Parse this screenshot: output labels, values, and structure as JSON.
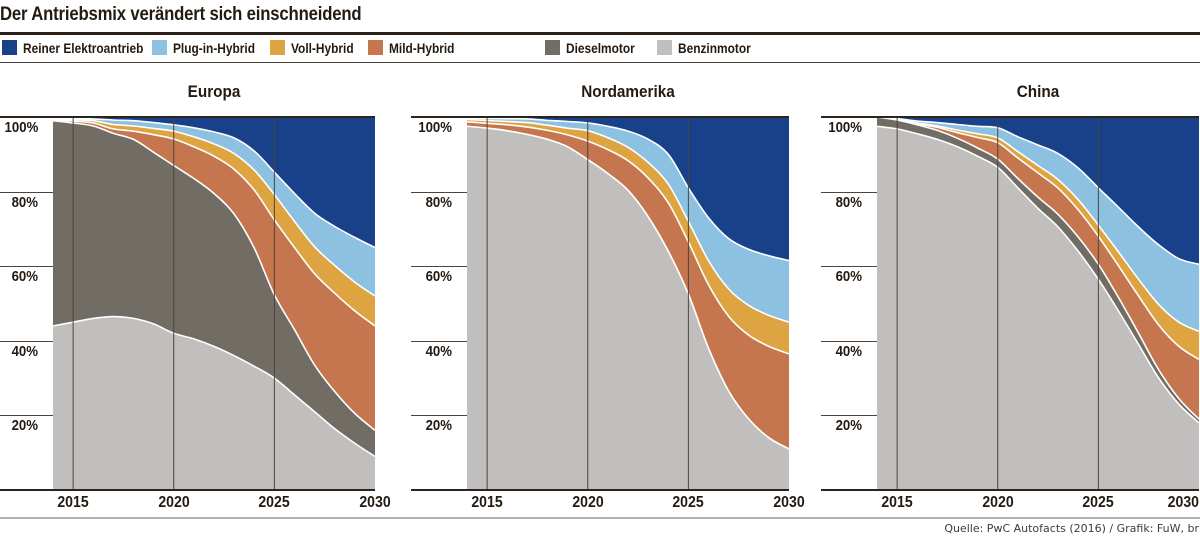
{
  "header": {
    "title": "Der Antriebsmix verändert sich einschneidend"
  },
  "legend": {
    "items": [
      {
        "key": "elektro",
        "label": "Reiner Elektroantrieb",
        "color": "#18418a"
      },
      {
        "key": "plug_in_hybrid",
        "label": "Plug-in-Hybrid",
        "color": "#8cc1e2"
      },
      {
        "key": "voll_hybrid",
        "label": "Voll-Hybrid",
        "color": "#dda441"
      },
      {
        "key": "mild_hybrid",
        "label": "Mild-Hybrid",
        "color": "#c5764e"
      },
      {
        "key": "dieselmotor",
        "label": "Dieselmotor",
        "color": "#716c64"
      },
      {
        "key": "benzinmotor",
        "label": "Benzinmotor",
        "color": "#c1bfbd"
      }
    ]
  },
  "footer": {
    "source": "Quelle: PwC Autofacts (2016) / Grafik: FuW, br"
  },
  "chart_data": {
    "type": "area",
    "stacked": true,
    "normalized_to_100": true,
    "unit": "%",
    "x_start": 2014,
    "x_end": 2030,
    "x": [
      2014,
      2015,
      2016,
      2017,
      2018,
      2019,
      2020,
      2021,
      2022,
      2023,
      2024,
      2025,
      2026,
      2027,
      2028,
      2029,
      2030
    ],
    "x_ticks": [
      {
        "label": "2015",
        "value": 2015
      },
      {
        "label": "2020",
        "value": 2020
      },
      {
        "label": "2025",
        "value": 2025
      },
      {
        "label": "2030",
        "value": 2030
      }
    ],
    "y_ticks": [
      {
        "label": "100%",
        "value": 100
      },
      {
        "label": "80%",
        "value": 80
      },
      {
        "label": "60%",
        "value": 60
      },
      {
        "label": "40%",
        "value": 40
      },
      {
        "label": "20%",
        "value": 20
      }
    ],
    "ylim": [
      0,
      100
    ],
    "grid_years": [
      2015,
      2020,
      2025
    ],
    "order_bottom_to_top": [
      "benzinmotor",
      "dieselmotor",
      "mild_hybrid",
      "voll_hybrid",
      "plug_in_hybrid",
      "elektro"
    ],
    "colors": {
      "benzinmotor": "#c1bfbd",
      "dieselmotor": "#716c64",
      "mild_hybrid": "#c5764e",
      "voll_hybrid": "#dda441",
      "plug_in_hybrid": "#8cc1e2",
      "elektro": "#18418a"
    },
    "charts": [
      {
        "title": "Europa",
        "series": {
          "benzinmotor": [
            44,
            45,
            46,
            46.5,
            46,
            44.5,
            42,
            40.5,
            38.5,
            36,
            33,
            30,
            25.5,
            21,
            16.5,
            12.5,
            9
          ],
          "dieselmotor": [
            55,
            53.4,
            51.6,
            49.1,
            48,
            46,
            45,
            43,
            41,
            38,
            31.5,
            22.3,
            17.5,
            12.5,
            10,
            8,
            7
          ],
          "mild_hybrid": [
            0.3,
            0.5,
            0.8,
            1.2,
            2.2,
            4.7,
            7.1,
            8.5,
            10,
            12,
            15.5,
            20.1,
            22,
            24.5,
            26.5,
            27.5,
            28
          ],
          "voll_hybrid": [
            0.25,
            0.4,
            0.6,
            1.2,
            1.4,
            1.7,
            2.1,
            2.7,
            3.3,
            4.2,
            5.3,
            6.8,
            7,
            7.2,
            7.5,
            7.7,
            8
          ],
          "plug_in_hybrid": [
            0.2,
            0.35,
            0.5,
            1.2,
            1.4,
            1.55,
            1.7,
            2.4,
            3.2,
            4.2,
            5.1,
            6,
            7.5,
            9,
            10.5,
            12,
            13
          ],
          "elektro": [
            0.25,
            0.35,
            0.5,
            0.8,
            1,
            1.5,
            2.1,
            2.9,
            4,
            5.6,
            9.1,
            14.8,
            20.5,
            25.8,
            29.5,
            32.3,
            35
          ]
        }
      },
      {
        "title": "Nordamerika",
        "series": {
          "benzinmotor": [
            97.5,
            97,
            96.3,
            95.3,
            94,
            92,
            89,
            85.5,
            81,
            74,
            64,
            52.5,
            38,
            26.5,
            19,
            14,
            11
          ],
          "dieselmotor": [
            0,
            0,
            0,
            0,
            0,
            0,
            0,
            0,
            0,
            0,
            0,
            0,
            0,
            0,
            0,
            0,
            0
          ],
          "mild_hybrid": [
            1.2,
            1.3,
            1.6,
            2,
            2.4,
            3.2,
            5,
            6.5,
            8,
            10.5,
            13,
            14,
            17,
            20,
            22.5,
            24.5,
            25.5
          ],
          "voll_hybrid": [
            0.65,
            0.75,
            0.9,
            1.2,
            1.4,
            1.8,
            2.8,
            3.2,
            3.6,
            4.2,
            5,
            5.5,
            6.5,
            7.3,
            8,
            8.3,
            8.5
          ],
          "plug_in_hybrid": [
            0.35,
            0.55,
            0.75,
            1,
            1.3,
            1.8,
            2.1,
            3.1,
            4.4,
            6.3,
            8,
            9,
            11.5,
            13.5,
            15,
            16,
            16.5
          ],
          "elektro": [
            0.3,
            0.4,
            0.45,
            0.5,
            0.9,
            1.2,
            1.6,
            2.5,
            3.8,
            6,
            10,
            19,
            27,
            32.5,
            35.5,
            37.2,
            38.5
          ]
        }
      },
      {
        "title": "China",
        "series": {
          "benzinmotor": [
            97.5,
            96.8,
            95.5,
            94,
            92,
            89.5,
            86.5,
            81,
            75.5,
            70.5,
            64,
            56.5,
            48,
            39,
            30,
            23,
            18
          ],
          "dieselmotor": [
            2.5,
            2.4,
            2.4,
            2.4,
            2.3,
            2.2,
            2.2,
            2.5,
            3,
            3.4,
            3.8,
            4,
            3.6,
            3,
            2.2,
            1.5,
            1
          ],
          "mild_hybrid": [
            0,
            0.1,
            0.3,
            0.8,
            1.5,
            2.8,
            4.4,
            5.5,
            6.5,
            7,
            7.3,
            7.5,
            8.5,
            10,
            12,
            14,
            16
          ],
          "voll_hybrid": [
            0,
            0.1,
            0.2,
            0.4,
            0.7,
            1,
            1.3,
            1.7,
            2,
            2.3,
            2.7,
            3,
            3.7,
            4.5,
            5.5,
            6.5,
            7.5
          ],
          "plug_in_hybrid": [
            0,
            0.2,
            0.5,
            0.9,
            1.5,
            2,
            2.7,
            4,
            5.5,
            7,
            8.5,
            10,
            12,
            14,
            16,
            17,
            18
          ],
          "elektro": [
            0,
            0.4,
            1.1,
            1.5,
            2,
            2.5,
            2.9,
            5.3,
            7.5,
            9.8,
            13.7,
            19,
            24.2,
            29.5,
            34.3,
            38,
            39.5
          ]
        }
      }
    ]
  }
}
